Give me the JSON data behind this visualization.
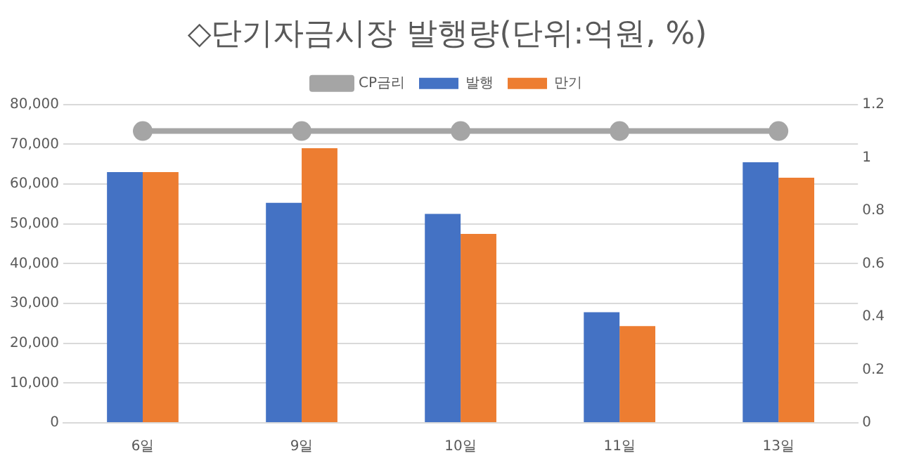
{
  "chart_data": {
    "type": "bar",
    "title": "◇단기자금시장 발행량(단위:억원, %)",
    "categories": [
      "6일",
      "9일",
      "10일",
      "11일",
      "13일"
    ],
    "series": [
      {
        "name": "발행",
        "color": "#4472c4",
        "values": [
          63000,
          55300,
          52500,
          27800,
          65500
        ]
      },
      {
        "name": "만기",
        "color": "#ed7d31",
        "values": [
          63000,
          69000,
          47500,
          24300,
          61600
        ]
      },
      {
        "name": "CP금리",
        "color": "#a5a5a5",
        "type": "line",
        "axis": "y2",
        "marker": "circle",
        "values": [
          1.1,
          1.1,
          1.1,
          1.1,
          1.1
        ]
      }
    ],
    "ylim": [
      0,
      80000
    ],
    "yticks": [
      {
        "value": 0,
        "label": "0"
      },
      {
        "value": 10000,
        "label": "10,000"
      },
      {
        "value": 20000,
        "label": "20,000"
      },
      {
        "value": 30000,
        "label": "30,000"
      },
      {
        "value": 40000,
        "label": "40,000"
      },
      {
        "value": 50000,
        "label": "50,000"
      },
      {
        "value": 60000,
        "label": "60,000"
      },
      {
        "value": 70000,
        "label": "70,000"
      },
      {
        "value": 80000,
        "label": "80,000"
      }
    ],
    "y2lim": [
      0,
      1.2
    ],
    "y2ticks": [
      0,
      0.2,
      0.4,
      0.6,
      0.8,
      1,
      1.2
    ],
    "grid": "y",
    "legend": "top"
  }
}
